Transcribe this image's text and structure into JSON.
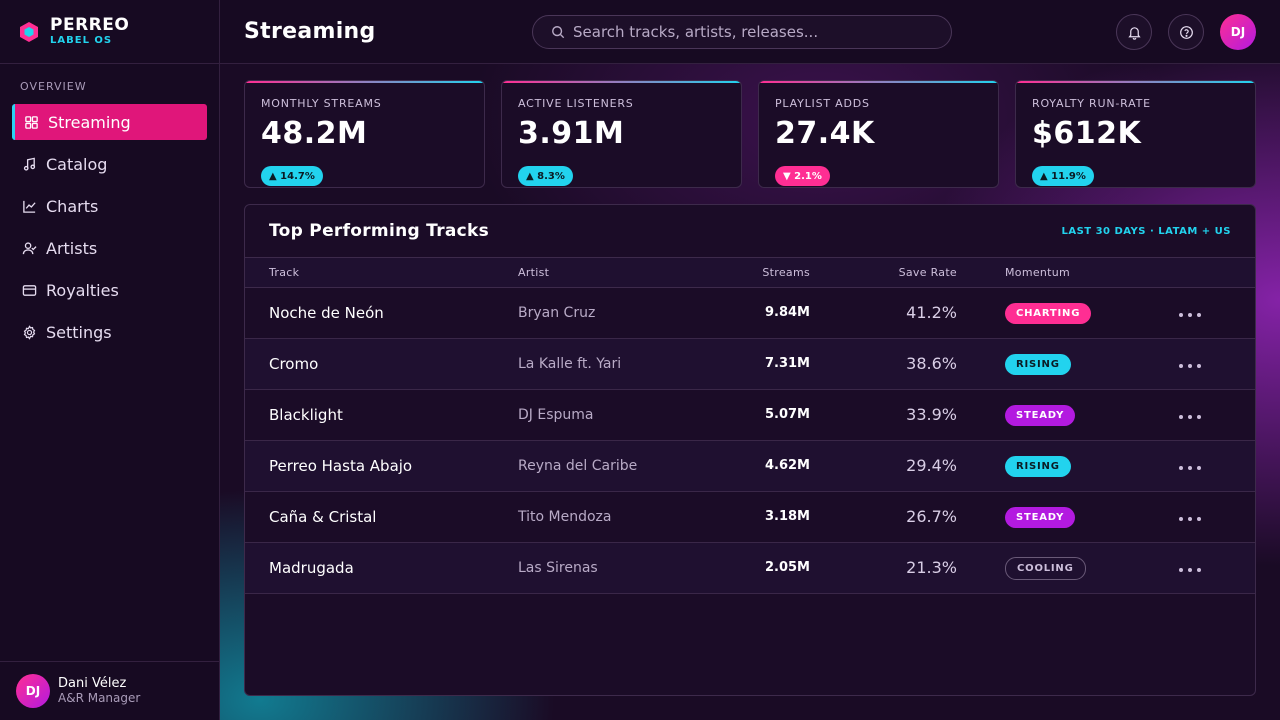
{
  "brand": {
    "name": "PERREO",
    "sub": "LABEL OS"
  },
  "sidebar": {
    "section": "OVERVIEW",
    "items": [
      {
        "label": "Streaming",
        "icon": "grid-icon",
        "active": true
      },
      {
        "label": "Catalog",
        "icon": "music-note-icon"
      },
      {
        "label": "Charts",
        "icon": "line-chart-icon"
      },
      {
        "label": "Artists",
        "icon": "user-check-icon"
      },
      {
        "label": "Royalties",
        "icon": "credit-card-icon"
      },
      {
        "label": "Settings",
        "icon": "gear-icon"
      }
    ]
  },
  "user": {
    "initials": "DJ",
    "name": "Dani Vélez",
    "role": "A&R Manager"
  },
  "header": {
    "title": "Streaming",
    "search_placeholder": "Search tracks, artists, releases...",
    "avatar_initials": "DJ"
  },
  "kpis": [
    {
      "label": "MONTHLY STREAMS",
      "value": "48.2M",
      "delta": "▲ 14.7%",
      "direction": "up"
    },
    {
      "label": "ACTIVE LISTENERS",
      "value": "3.91M",
      "delta": "▲ 8.3%",
      "direction": "up"
    },
    {
      "label": "PLAYLIST ADDS",
      "value": "27.4K",
      "delta": "▼ 2.1%",
      "direction": "down"
    },
    {
      "label": "ROYALTY RUN-RATE",
      "value": "$612K",
      "delta": "▲ 11.9%",
      "direction": "up"
    }
  ],
  "table": {
    "title": "Top Performing Tracks",
    "scope": "LAST 30 DAYS · LATAM + US",
    "columns": {
      "track": "Track",
      "artist": "Artist",
      "streams": "Streams",
      "save_rate": "Save Rate",
      "momentum": "Momentum"
    },
    "rows": [
      {
        "track": "Noche de Neón",
        "artist": "Bryan Cruz",
        "streams": "9.84M",
        "save_rate": "41.2%",
        "momentum": "CHARTING",
        "kind": "charting"
      },
      {
        "track": "Cromo",
        "artist": "La Kalle ft. Yari",
        "streams": "7.31M",
        "save_rate": "38.6%",
        "momentum": "RISING",
        "kind": "rising"
      },
      {
        "track": "Blacklight",
        "artist": "DJ Espuma",
        "streams": "5.07M",
        "save_rate": "33.9%",
        "momentum": "STEADY",
        "kind": "steady"
      },
      {
        "track": "Perreo Hasta Abajo",
        "artist": "Reyna del Caribe",
        "streams": "4.62M",
        "save_rate": "29.4%",
        "momentum": "RISING",
        "kind": "rising"
      },
      {
        "track": "Caña & Cristal",
        "artist": "Tito Mendoza",
        "streams": "3.18M",
        "save_rate": "26.7%",
        "momentum": "STEADY",
        "kind": "steady"
      },
      {
        "track": "Madrugada",
        "artist": "Las Sirenas",
        "streams": "2.05M",
        "save_rate": "21.3%",
        "momentum": "COOLING",
        "kind": "cooling"
      }
    ]
  },
  "colors": {
    "accent_pink": "#ff2e93",
    "accent_cyan": "#22d3ee",
    "accent_purple": "#b31ae0"
  }
}
